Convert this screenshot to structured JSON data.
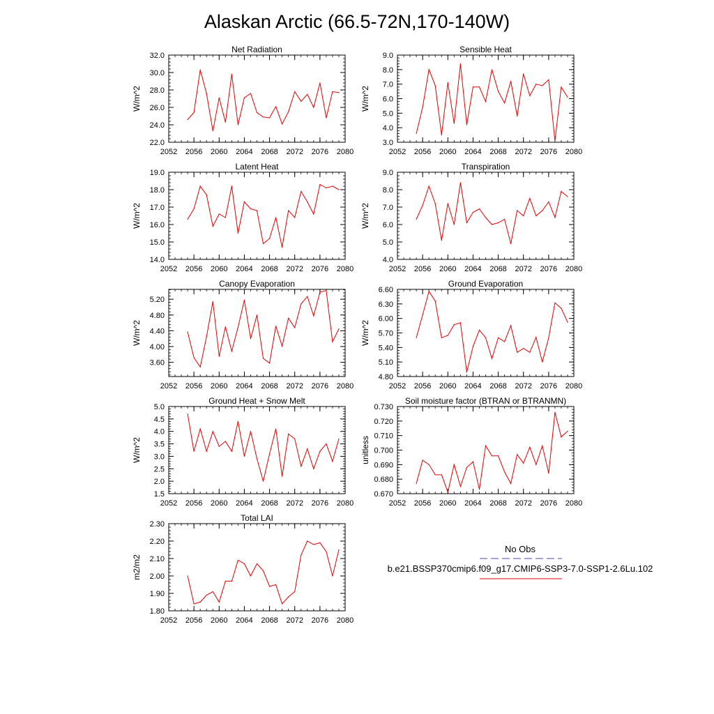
{
  "figure_title": "Alaskan Arctic (66.5-72N,170-140W)",
  "legend": {
    "obs_label": "No Obs",
    "obs_color": "#4a4aa8",
    "case_label": "b.e21.BSSP370cmip6.f09_g17.CMIP6-SSP3-7.0-SSP1-2.6Lu.102",
    "case_color": "#e00000"
  },
  "chart_data": [
    {
      "type": "line",
      "title": "Net Radiation",
      "ylabel": "W/m^2",
      "xlim": [
        2052,
        2080
      ],
      "xticks": [
        2052,
        2056,
        2060,
        2064,
        2068,
        2072,
        2076,
        2080
      ],
      "ylim": [
        22.0,
        32.0
      ],
      "yticks": [
        "22.0",
        "24.0",
        "26.0",
        "28.0",
        "30.0",
        "32.0"
      ],
      "x": [
        2055,
        2056,
        2057,
        2058,
        2059,
        2060,
        2061,
        2062,
        2063,
        2064,
        2065,
        2066,
        2067,
        2068,
        2069,
        2070,
        2071,
        2072,
        2073,
        2074,
        2075,
        2076,
        2077,
        2078,
        2079
      ],
      "values": [
        24.6,
        25.4,
        30.3,
        27.6,
        23.3,
        27.1,
        24.3,
        29.8,
        24.0,
        27.1,
        27.6,
        25.4,
        24.9,
        24.8,
        26.1,
        24.1,
        25.5,
        27.8,
        26.7,
        27.5,
        26.0,
        28.8,
        24.8,
        27.8,
        27.7
      ]
    },
    {
      "type": "line",
      "title": "Sensible Heat",
      "ylabel": "W/m^2",
      "xlim": [
        2052,
        2080
      ],
      "xticks": [
        2052,
        2056,
        2060,
        2064,
        2068,
        2072,
        2076,
        2080
      ],
      "ylim": [
        3.0,
        9.0
      ],
      "yticks": [
        "3.0",
        "4.0",
        "5.0",
        "6.0",
        "7.0",
        "8.0",
        "9.0"
      ],
      "x": [
        2055,
        2056,
        2057,
        2058,
        2059,
        2060,
        2061,
        2062,
        2063,
        2064,
        2065,
        2066,
        2067,
        2068,
        2069,
        2070,
        2071,
        2072,
        2073,
        2074,
        2075,
        2076,
        2077,
        2078,
        2079
      ],
      "values": [
        3.6,
        5.4,
        8.0,
        6.9,
        3.5,
        7.1,
        4.3,
        8.4,
        4.2,
        6.8,
        6.8,
        5.8,
        8.0,
        6.5,
        5.7,
        7.2,
        4.8,
        7.7,
        6.2,
        7.0,
        6.9,
        7.3,
        3.1,
        6.8,
        6.1
      ]
    },
    {
      "type": "line",
      "title": "Latent Heat",
      "ylabel": "W/m^2",
      "xlim": [
        2052,
        2080
      ],
      "xticks": [
        2052,
        2056,
        2060,
        2064,
        2068,
        2072,
        2076,
        2080
      ],
      "ylim": [
        14.0,
        19.0
      ],
      "yticks": [
        "14.0",
        "15.0",
        "16.0",
        "17.0",
        "18.0",
        "19.0"
      ],
      "x": [
        2055,
        2056,
        2057,
        2058,
        2059,
        2060,
        2061,
        2062,
        2063,
        2064,
        2065,
        2066,
        2067,
        2068,
        2069,
        2070,
        2071,
        2072,
        2073,
        2074,
        2075,
        2076,
        2077,
        2078,
        2079
      ],
      "values": [
        16.3,
        16.9,
        18.2,
        17.7,
        15.9,
        16.6,
        16.4,
        18.2,
        15.5,
        17.3,
        16.9,
        16.8,
        14.9,
        15.2,
        16.4,
        14.7,
        16.8,
        16.4,
        17.9,
        17.3,
        16.6,
        18.3,
        18.1,
        18.2,
        18.0
      ]
    },
    {
      "type": "line",
      "title": "Transpiration",
      "ylabel": "W/m^2",
      "xlim": [
        2052,
        2080
      ],
      "xticks": [
        2052,
        2056,
        2060,
        2064,
        2068,
        2072,
        2076,
        2080
      ],
      "ylim": [
        4.0,
        9.0
      ],
      "yticks": [
        "4.0",
        "5.0",
        "6.0",
        "7.0",
        "8.0",
        "9.0"
      ],
      "x": [
        2055,
        2056,
        2057,
        2058,
        2059,
        2060,
        2061,
        2062,
        2063,
        2064,
        2065,
        2066,
        2067,
        2068,
        2069,
        2070,
        2071,
        2072,
        2073,
        2074,
        2075,
        2076,
        2077,
        2078,
        2079
      ],
      "values": [
        6.3,
        7.1,
        8.2,
        7.2,
        5.1,
        7.2,
        6.0,
        8.4,
        6.1,
        6.7,
        6.9,
        6.4,
        6.0,
        6.1,
        6.3,
        4.9,
        6.8,
        6.5,
        7.5,
        6.5,
        6.8,
        7.3,
        6.4,
        7.9,
        7.6
      ]
    },
    {
      "type": "line",
      "title": "Canopy Evaporation",
      "ylabel": "W/m^2",
      "xlim": [
        2052,
        2080
      ],
      "xticks": [
        2052,
        2056,
        2060,
        2064,
        2068,
        2072,
        2076,
        2080
      ],
      "ylim": [
        3.24,
        5.45
      ],
      "yticks": [
        "3.60",
        "4.00",
        "4.40",
        "4.80",
        "5.20"
      ],
      "x": [
        2055,
        2056,
        2057,
        2058,
        2059,
        2060,
        2061,
        2062,
        2063,
        2064,
        2065,
        2066,
        2067,
        2068,
        2069,
        2070,
        2071,
        2072,
        2073,
        2074,
        2075,
        2076,
        2077,
        2078,
        2079
      ],
      "values": [
        4.37,
        3.72,
        3.48,
        4.25,
        5.14,
        3.75,
        4.5,
        3.88,
        4.49,
        5.18,
        4.2,
        4.8,
        3.7,
        3.58,
        4.52,
        4.01,
        4.72,
        4.48,
        5.08,
        5.27,
        4.78,
        5.38,
        5.42,
        4.12,
        4.45
      ]
    },
    {
      "type": "line",
      "title": "Ground Evaporation",
      "ylabel": "W/m^2",
      "xlim": [
        2052,
        2080
      ],
      "xticks": [
        2052,
        2056,
        2060,
        2064,
        2068,
        2072,
        2076,
        2080
      ],
      "ylim": [
        4.8,
        6.6
      ],
      "yticks": [
        "4.80",
        "5.10",
        "5.40",
        "5.70",
        "6.00",
        "6.30",
        "6.60"
      ],
      "x": [
        2055,
        2056,
        2057,
        2058,
        2059,
        2060,
        2061,
        2062,
        2063,
        2064,
        2065,
        2066,
        2067,
        2068,
        2069,
        2070,
        2071,
        2072,
        2073,
        2074,
        2075,
        2076,
        2077,
        2078,
        2079
      ],
      "values": [
        5.6,
        6.07,
        6.56,
        6.36,
        5.6,
        5.65,
        5.87,
        5.91,
        4.89,
        5.42,
        5.76,
        5.6,
        5.17,
        5.6,
        5.52,
        5.85,
        5.3,
        5.38,
        5.3,
        5.61,
        5.1,
        5.6,
        6.32,
        6.21,
        5.92
      ]
    },
    {
      "type": "line",
      "title": "Ground Heat + Snow Melt",
      "ylabel": "W/m^2",
      "xlim": [
        2052,
        2080
      ],
      "xticks": [
        2052,
        2056,
        2060,
        2064,
        2068,
        2072,
        2076,
        2080
      ],
      "ylim": [
        1.5,
        5.0
      ],
      "yticks": [
        "1.5",
        "2.0",
        "2.5",
        "3.0",
        "3.5",
        "4.0",
        "4.5",
        "5.0"
      ],
      "x": [
        2055,
        2056,
        2057,
        2058,
        2059,
        2060,
        2061,
        2062,
        2063,
        2064,
        2065,
        2066,
        2067,
        2068,
        2069,
        2070,
        2071,
        2072,
        2073,
        2074,
        2075,
        2076,
        2077,
        2078,
        2079
      ],
      "values": [
        4.7,
        3.2,
        4.1,
        3.2,
        4.0,
        3.4,
        3.6,
        3.2,
        4.4,
        3.0,
        4.0,
        2.9,
        2.0,
        3.1,
        4.1,
        2.2,
        3.9,
        3.7,
        2.6,
        3.3,
        2.5,
        3.2,
        3.5,
        2.8,
        3.7
      ]
    },
    {
      "type": "line",
      "title": "Soil moisture factor (BTRAN or BTRANMN)",
      "ylabel": "unitless",
      "xlim": [
        2052,
        2080
      ],
      "xticks": [
        2052,
        2056,
        2060,
        2064,
        2068,
        2072,
        2076,
        2080
      ],
      "ylim": [
        0.67,
        0.73
      ],
      "yticks": [
        "0.670",
        "0.680",
        "0.690",
        "0.700",
        "0.710",
        "0.720",
        "0.730"
      ],
      "x": [
        2055,
        2056,
        2057,
        2058,
        2059,
        2060,
        2061,
        2062,
        2063,
        2064,
        2065,
        2066,
        2067,
        2068,
        2069,
        2070,
        2071,
        2072,
        2073,
        2074,
        2075,
        2076,
        2077,
        2078,
        2079
      ],
      "values": [
        0.677,
        0.693,
        0.69,
        0.683,
        0.683,
        0.671,
        0.69,
        0.675,
        0.688,
        0.692,
        0.673,
        0.703,
        0.696,
        0.696,
        0.685,
        0.677,
        0.697,
        0.691,
        0.702,
        0.69,
        0.703,
        0.684,
        0.726,
        0.709,
        0.713
      ]
    },
    {
      "type": "line",
      "title": "Total LAI",
      "ylabel": "m2/m2",
      "xlim": [
        2052,
        2080
      ],
      "xticks": [
        2052,
        2056,
        2060,
        2064,
        2068,
        2072,
        2076,
        2080
      ],
      "ylim": [
        1.8,
        2.3
      ],
      "yticks": [
        "1.80",
        "1.90",
        "2.00",
        "2.10",
        "2.20",
        "2.30"
      ],
      "x": [
        2055,
        2056,
        2057,
        2058,
        2059,
        2060,
        2061,
        2062,
        2063,
        2064,
        2065,
        2066,
        2067,
        2068,
        2069,
        2070,
        2071,
        2072,
        2073,
        2074,
        2075,
        2076,
        2077,
        2078,
        2079
      ],
      "values": [
        2.0,
        1.84,
        1.85,
        1.89,
        1.91,
        1.85,
        1.97,
        1.97,
        2.09,
        2.07,
        2.0,
        2.07,
        2.03,
        1.94,
        1.95,
        1.84,
        1.88,
        1.91,
        2.12,
        2.2,
        2.18,
        2.19,
        2.14,
        2.0,
        2.15
      ]
    }
  ]
}
